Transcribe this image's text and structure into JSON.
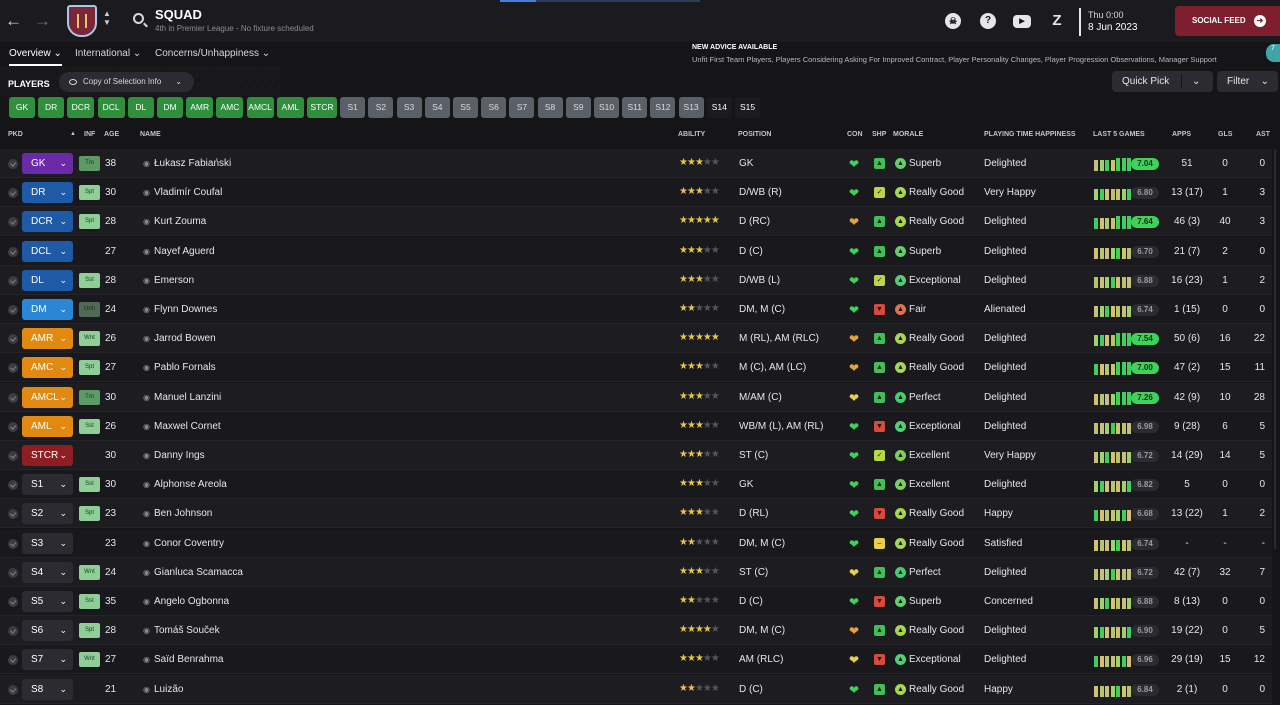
{
  "topbar": {
    "title": "SQUAD",
    "subtitle": "4th in Premier League - No fixture scheduled",
    "date_time": "Thu 0:00",
    "date": "8 Jun 2023",
    "social_feed_label": "SOCIAL FEED"
  },
  "subnav": {
    "tabs": [
      {
        "label": "Overview ⌄"
      },
      {
        "label": "International ⌄"
      },
      {
        "label": "Concerns/Unhappiness ⌄"
      }
    ]
  },
  "advice": {
    "title": "NEW ADVICE AVAILABLE",
    "text": "Unfit First Team Players, Players Considering Asking For Improved Contract, Player Personality Changes, Player Progression Observations, Manager Support",
    "badge": "7"
  },
  "toolbar": {
    "players_label": "PLAYERS",
    "view_label": "Copy of Selection Info",
    "quick_pick_label": "Quick Pick",
    "filter_label": "Filter"
  },
  "chips": [
    "GK",
    "DR",
    "DCR",
    "DCL",
    "DL",
    "DM",
    "AMR",
    "AMC",
    "AMCL",
    "AML",
    "STCR",
    "S1",
    "S2",
    "S3",
    "S4",
    "S5",
    "S6",
    "S7",
    "S8",
    "S9",
    "S10",
    "S11",
    "S12",
    "S13",
    "S14",
    "S15"
  ],
  "columns": {
    "pkd": "PKD",
    "inf": "INF",
    "age": "AGE",
    "name": "NAME",
    "ability": "ABILITY",
    "position": "POSITION",
    "con": "CON",
    "shp": "SHP",
    "morale": "MORALE",
    "pth": "PLAYING TIME HAPPINESS",
    "last5": "LAST 5 GAMES",
    "apps": "APPS",
    "gls": "GLS",
    "ast": "AST"
  },
  "colors": {
    "goalkeeper": "#6b2aa8",
    "defender": "#1f5aa6",
    "defensive_mid": "#2a86d6",
    "attacking_mid": "#e08a12",
    "striker": "#8e1d24",
    "sub": "#2b2b31",
    "accent_green": "#2f8f3c",
    "social_feed": "#7d1f2e"
  },
  "players": [
    {
      "slot": "GK",
      "inf": "Tm",
      "age": "38",
      "name": "Łukasz Fabiański",
      "ability": 2.5,
      "position": "GK",
      "con": "green",
      "shp": "green",
      "morale": "Superb",
      "pth": "Delighted",
      "rating": "7.04",
      "rating_hi": true,
      "apps": "51",
      "gls": "0",
      "ast": "0"
    },
    {
      "slot": "DR",
      "inf": "Spt",
      "age": "30",
      "name": "Vladimír Coufal",
      "ability": 3,
      "position": "D/WB (R)",
      "con": "green",
      "shp": "yellowgreen",
      "morale": "Really Good",
      "pth": "Very Happy",
      "rating": "6.80",
      "rating_hi": false,
      "apps": "13 (17)",
      "gls": "1",
      "ast": "3"
    },
    {
      "slot": "DCR",
      "inf": "Spt",
      "age": "28",
      "name": "Kurt Zouma",
      "ability": 4.5,
      "position": "D (RC)",
      "con": "orange",
      "shp": "green",
      "morale": "Really Good",
      "pth": "Delighted",
      "rating": "7.64",
      "rating_hi": true,
      "apps": "46 (3)",
      "gls": "40",
      "ast": "3"
    },
    {
      "slot": "DCL",
      "inf": "",
      "age": "27",
      "name": "Nayef Aguerd",
      "ability": 2.5,
      "position": "D (C)",
      "con": "green",
      "shp": "green",
      "morale": "Superb",
      "pth": "Delighted",
      "rating": "6.70",
      "rating_hi": false,
      "apps": "21 (7)",
      "gls": "2",
      "ast": "0"
    },
    {
      "slot": "DL",
      "inf": "Sst",
      "age": "28",
      "name": "Emerson",
      "ability": 3,
      "position": "D/WB (L)",
      "con": "green",
      "shp": "yellowgreen",
      "morale": "Exceptional",
      "pth": "Delighted",
      "rating": "6.88",
      "rating_hi": false,
      "apps": "16 (23)",
      "gls": "1",
      "ast": "2"
    },
    {
      "slot": "DM",
      "inf": "Unh",
      "age": "24",
      "name": "Flynn Downes",
      "ability": 2,
      "position": "DM, M (C)",
      "con": "green",
      "shp": "red",
      "morale": "Fair",
      "pth": "Alienated",
      "rating": "6.74",
      "rating_hi": false,
      "apps": "1 (15)",
      "gls": "0",
      "ast": "0"
    },
    {
      "slot": "AMR",
      "inf": "Wnt",
      "age": "26",
      "name": "Jarrod Bowen",
      "ability": 4.5,
      "position": "M (RL), AM (RLC)",
      "con": "orange",
      "shp": "green",
      "morale": "Really Good",
      "pth": "Delighted",
      "rating": "7.54",
      "rating_hi": true,
      "apps": "50 (6)",
      "gls": "16",
      "ast": "22"
    },
    {
      "slot": "AMC",
      "inf": "Spt",
      "age": "27",
      "name": "Pablo Fornals",
      "ability": 3,
      "position": "M (C), AM (LC)",
      "con": "orange",
      "shp": "green",
      "morale": "Really Good",
      "pth": "Delighted",
      "rating": "7.00",
      "rating_hi": true,
      "apps": "47 (2)",
      "gls": "15",
      "ast": "11"
    },
    {
      "slot": "AMCL",
      "inf": "Tm",
      "age": "30",
      "name": "Manuel Lanzini",
      "ability": 3,
      "position": "M/AM (C)",
      "con": "yellow",
      "shp": "green",
      "morale": "Perfect",
      "pth": "Delighted",
      "rating": "7.26",
      "rating_hi": true,
      "apps": "42 (9)",
      "gls": "10",
      "ast": "28"
    },
    {
      "slot": "AML",
      "inf": "Sst",
      "age": "26",
      "name": "Maxwel Cornet",
      "ability": 2.5,
      "position": "WB/M (L), AM (RL)",
      "con": "green",
      "shp": "red",
      "morale": "Exceptional",
      "pth": "Delighted",
      "rating": "6.98",
      "rating_hi": false,
      "apps": "9 (28)",
      "gls": "6",
      "ast": "5"
    },
    {
      "slot": "STCR",
      "inf": "",
      "age": "30",
      "name": "Danny Ings",
      "ability": 3,
      "position": "ST (C)",
      "con": "green",
      "shp": "yellowgreen",
      "morale": "Excellent",
      "pth": "Very Happy",
      "rating": "6.72",
      "rating_hi": false,
      "apps": "14 (29)",
      "gls": "14",
      "ast": "5"
    },
    {
      "slot": "S1",
      "inf": "Sst",
      "age": "30",
      "name": "Alphonse Areola",
      "ability": 3,
      "position": "GK",
      "con": "green",
      "shp": "green",
      "morale": "Excellent",
      "pth": "Delighted",
      "rating": "6.82",
      "rating_hi": false,
      "apps": "5",
      "gls": "0",
      "ast": "0"
    },
    {
      "slot": "S2",
      "inf": "Spt",
      "age": "23",
      "name": "Ben Johnson",
      "ability": 2.5,
      "position": "D (RL)",
      "con": "green",
      "shp": "red",
      "morale": "Really Good",
      "pth": "Happy",
      "rating": "6.68",
      "rating_hi": false,
      "apps": "13 (22)",
      "gls": "1",
      "ast": "2"
    },
    {
      "slot": "S3",
      "inf": "",
      "age": "23",
      "name": "Conor Coventry",
      "ability": 2,
      "position": "DM, M (C)",
      "con": "green",
      "shp": "yellow",
      "morale": "Really Good",
      "pth": "Satisfied",
      "rating": "6.74",
      "rating_hi": false,
      "apps": "-",
      "gls": "-",
      "ast": "-"
    },
    {
      "slot": "S4",
      "inf": "Wnt",
      "age": "24",
      "name": "Gianluca Scamacca",
      "ability": 3,
      "position": "ST (C)",
      "con": "yellow",
      "shp": "green",
      "morale": "Perfect",
      "pth": "Delighted",
      "rating": "6.72",
      "rating_hi": false,
      "apps": "42 (7)",
      "gls": "32",
      "ast": "7"
    },
    {
      "slot": "S5",
      "inf": "Sst",
      "age": "35",
      "name": "Angelo Ogbonna",
      "ability": 2,
      "position": "D (C)",
      "con": "green",
      "shp": "red",
      "morale": "Superb",
      "pth": "Concerned",
      "rating": "6.88",
      "rating_hi": false,
      "apps": "8 (13)",
      "gls": "0",
      "ast": "0"
    },
    {
      "slot": "S6",
      "inf": "Spt",
      "age": "28",
      "name": "Tomáš Souček",
      "ability": 3.5,
      "position": "DM, M (C)",
      "con": "orange",
      "shp": "green",
      "morale": "Really Good",
      "pth": "Delighted",
      "rating": "6.90",
      "rating_hi": false,
      "apps": "19 (22)",
      "gls": "0",
      "ast": "5"
    },
    {
      "slot": "S7",
      "inf": "Wnt",
      "age": "27",
      "name": "Saïd Benrahma",
      "ability": 3,
      "position": "AM (RLC)",
      "con": "yellow",
      "shp": "red",
      "morale": "Exceptional",
      "pth": "Delighted",
      "rating": "6.96",
      "rating_hi": false,
      "apps": "29 (19)",
      "gls": "15",
      "ast": "12"
    },
    {
      "slot": "S8",
      "inf": "",
      "age": "21",
      "name": "Luizão",
      "ability": 2,
      "position": "D (C)",
      "con": "green",
      "shp": "green",
      "morale": "Really Good",
      "pth": "Happy",
      "rating": "6.84",
      "rating_hi": false,
      "apps": "2 (1)",
      "gls": "0",
      "ast": "0"
    }
  ]
}
